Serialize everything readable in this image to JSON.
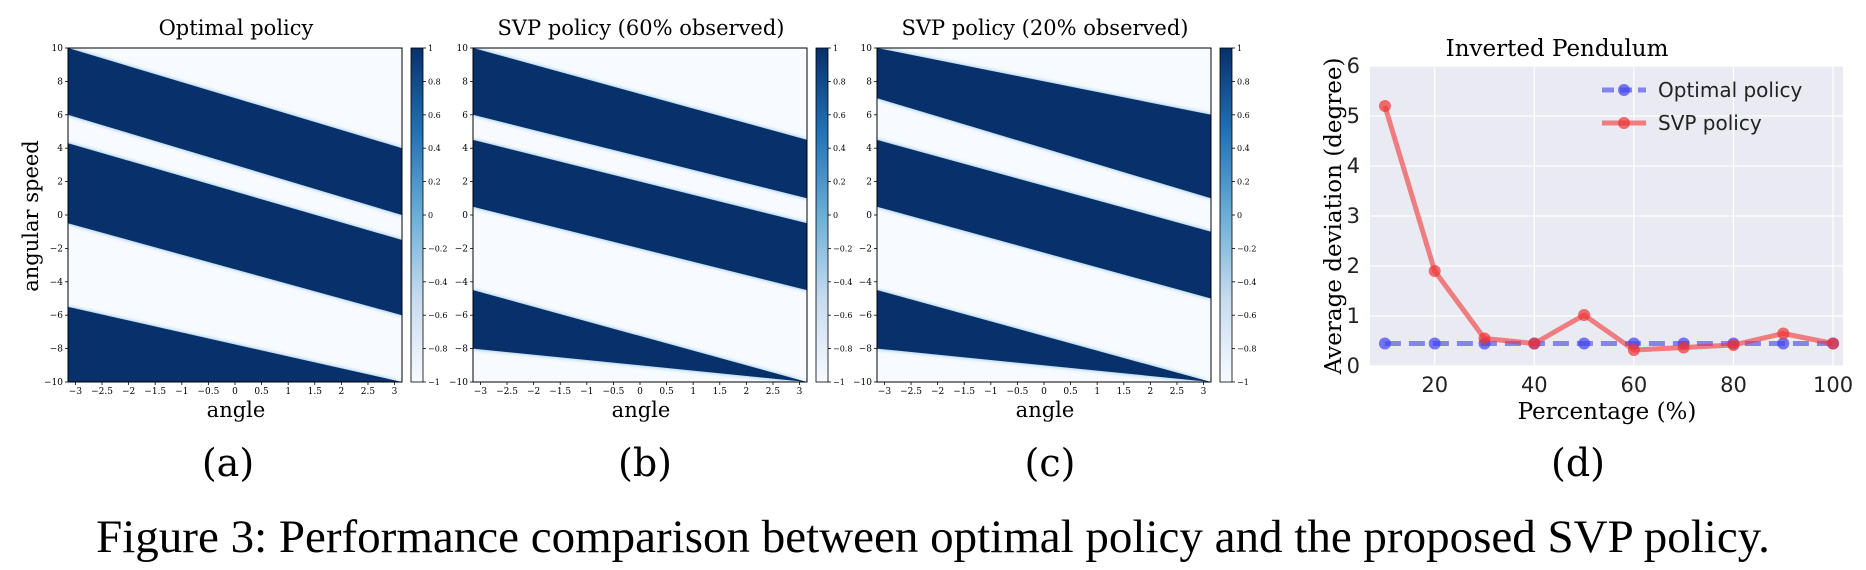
{
  "figure": {
    "caption": "Figure 3: Performance comparison between optimal policy and the proposed SVP policy."
  },
  "panels": [
    {
      "label": "(a)",
      "title": "Optimal policy",
      "xlabel": "angle",
      "ylabel": "angular speed"
    },
    {
      "label": "(b)",
      "title": "SVP policy (60% observed)",
      "xlabel": "angle",
      "ylabel": ""
    },
    {
      "label": "(c)",
      "title": "SVP policy (20% observed)",
      "xlabel": "angle",
      "ylabel": ""
    },
    {
      "label": "(d)",
      "title": "Inverted Pendulum",
      "xlabel": "Percentage (%)",
      "ylabel": "Average deviation (degree)"
    }
  ],
  "heatmap_axes": {
    "x_ticks": [
      "−3",
      "−2.5",
      "−2",
      "−1.5",
      "−1",
      "−0.5",
      "0",
      "0.5",
      "1",
      "1.5",
      "2",
      "2.5",
      "3"
    ],
    "y_ticks": [
      "10",
      "8",
      "6",
      "4",
      "2",
      "0",
      "−2",
      "−4",
      "−6",
      "−8",
      "−10"
    ],
    "colorbar_ticks": [
      "1",
      "0.8",
      "0.6",
      "0.4",
      "0.2",
      "0",
      "−0.2",
      "−0.4",
      "−0.6",
      "−0.8",
      "−1"
    ],
    "xlim": [
      -3.14,
      3.14
    ],
    "ylim": [
      -10,
      10
    ],
    "clim": [
      -1,
      1
    ],
    "colormap": [
      "#f7fbff",
      "#c6dbef",
      "#6baed6",
      "#2171b5",
      "#08306b"
    ]
  },
  "chart_data": [
    {
      "type": "heatmap",
      "title": "Optimal policy",
      "xlabel": "angle",
      "ylabel": "angular speed",
      "xlim": [
        -3.14,
        3.14
      ],
      "ylim": [
        -10,
        10
      ],
      "clim": [
        -1,
        1
      ],
      "bands": [
        {
          "value": 1,
          "y_at_left": [
            6,
            10
          ],
          "y_at_right": [
            0,
            4
          ]
        },
        {
          "value": 1,
          "y_at_left": [
            -0.5,
            4.3
          ],
          "y_at_right": [
            -6,
            -1.5
          ]
        },
        {
          "value": 1,
          "y_at_left": [
            -10,
            -5.5
          ],
          "y_at_right": [
            -10,
            -10
          ]
        }
      ]
    },
    {
      "type": "heatmap",
      "title": "SVP policy (60% observed)",
      "xlabel": "angle",
      "xlim": [
        -3.14,
        3.14
      ],
      "ylim": [
        -10,
        10
      ],
      "clim": [
        -1,
        1
      ],
      "bands": [
        {
          "value": 1,
          "y_at_left": [
            6,
            10
          ],
          "y_at_right": [
            1,
            4.5
          ]
        },
        {
          "value": 1,
          "y_at_left": [
            0.5,
            4.5
          ],
          "y_at_right": [
            -4.5,
            -0.5
          ]
        },
        {
          "value": 1,
          "y_at_left": [
            -8,
            -4.5
          ],
          "y_at_right": [
            -10,
            -10
          ]
        }
      ]
    },
    {
      "type": "heatmap",
      "title": "SVP policy (20% observed)",
      "xlabel": "angle",
      "xlim": [
        -3.14,
        3.14
      ],
      "ylim": [
        -10,
        10
      ],
      "clim": [
        -1,
        1
      ],
      "bands": [
        {
          "value": 1,
          "y_at_left": [
            7,
            10
          ],
          "y_at_right": [
            1,
            6
          ]
        },
        {
          "value": 1,
          "y_at_left": [
            0.5,
            4.5
          ],
          "y_at_right": [
            -5,
            -1
          ]
        },
        {
          "value": 1,
          "y_at_left": [
            -8,
            -4.5
          ],
          "y_at_right": [
            -10,
            -10
          ]
        }
      ]
    },
    {
      "type": "line",
      "title": "Inverted Pendulum",
      "xlabel": "Percentage (%)",
      "ylabel": "Average deviation (degree)",
      "x": [
        10,
        20,
        30,
        40,
        50,
        60,
        70,
        80,
        90,
        100
      ],
      "x_ticks": [
        20,
        40,
        60,
        80,
        100
      ],
      "y_ticks": [
        0,
        1,
        2,
        3,
        4,
        5,
        6
      ],
      "xlim": [
        7,
        102
      ],
      "ylim": [
        0,
        6
      ],
      "grid": true,
      "legend": "top-right",
      "series": [
        {
          "name": "Optimal policy",
          "color": "#4040ee",
          "style": "dashed",
          "values": [
            0.45,
            0.45,
            0.45,
            0.45,
            0.45,
            0.45,
            0.45,
            0.45,
            0.45,
            0.45
          ]
        },
        {
          "name": "SVP policy",
          "color": "#ee3333",
          "style": "solid",
          "values": [
            5.2,
            1.9,
            0.55,
            0.45,
            1.02,
            0.32,
            0.37,
            0.42,
            0.65,
            0.45
          ]
        }
      ]
    }
  ]
}
